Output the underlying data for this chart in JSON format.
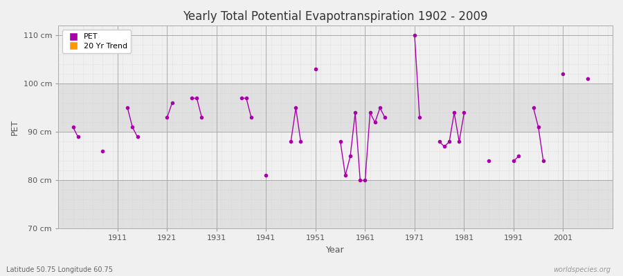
{
  "title": "Yearly Total Potential Evapotranspiration 1902 - 2009",
  "xlabel": "Year",
  "ylabel": "PET",
  "ylim": [
    70,
    112
  ],
  "xlim": [
    1899,
    2011
  ],
  "yticks": [
    70,
    80,
    90,
    100,
    110
  ],
  "ytick_labels": [
    "70 cm",
    "80 cm",
    "90 cm",
    "100 cm",
    "110 cm"
  ],
  "xticks": [
    1911,
    1921,
    1931,
    1941,
    1951,
    1961,
    1971,
    1981,
    1991,
    2001
  ],
  "fig_bg_color": "#f0f0f0",
  "plot_bg_color": "#f0f0f0",
  "band_color_dark": "#e0e0e0",
  "band_color_light": "#f0f0f0",
  "grid_color": "#cccccc",
  "pet_color": "#aa00aa",
  "trend_color": "#ff9900",
  "watermark": "worldspecies.org",
  "subtitle": "Latitude 50.75 Longitude 60.75",
  "pet_data": {
    "years": [
      1902,
      1903,
      1908,
      1913,
      1914,
      1915,
      1921,
      1922,
      1926,
      1927,
      1928,
      1936,
      1937,
      1938,
      1941,
      1946,
      1947,
      1948,
      1951,
      1956,
      1957,
      1958,
      1959,
      1960,
      1961,
      1962,
      1963,
      1964,
      1965,
      1971,
      1972,
      1976,
      1977,
      1978,
      1979,
      1980,
      1981,
      1986,
      1991,
      1992,
      1995,
      1996,
      1997,
      2001,
      2006
    ],
    "values": [
      91,
      89,
      86,
      95,
      91,
      89,
      93,
      96,
      97,
      97,
      93,
      97,
      97,
      93,
      81,
      88,
      95,
      88,
      103,
      88,
      81,
      85,
      94,
      80,
      80,
      94,
      92,
      95,
      93,
      110,
      93,
      88,
      87,
      88,
      94,
      88,
      94,
      84,
      84,
      85,
      95,
      91,
      84,
      102,
      101
    ]
  }
}
